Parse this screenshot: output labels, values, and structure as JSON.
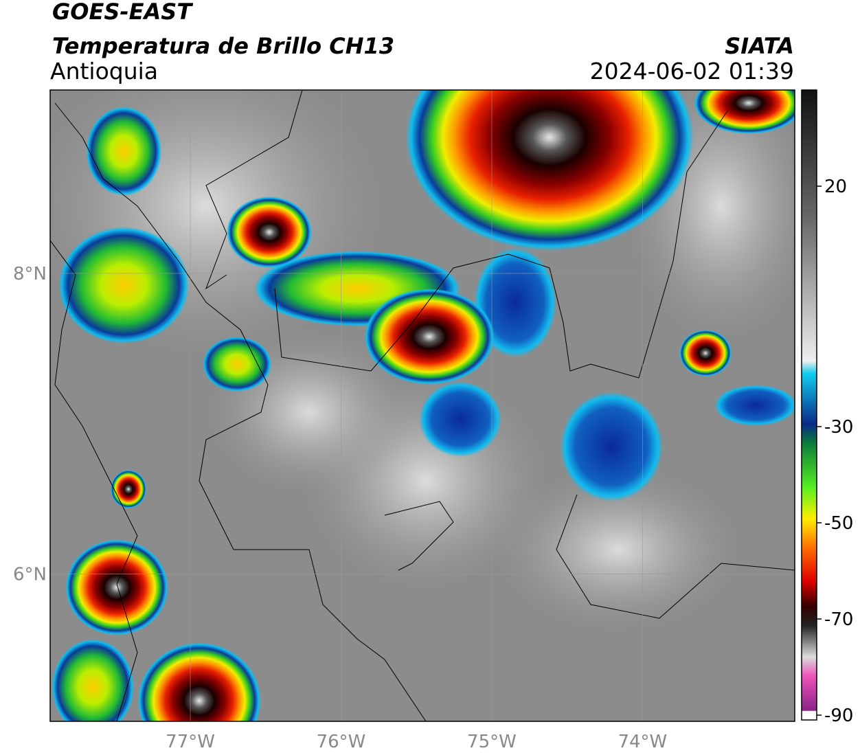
{
  "header": {
    "satellite": "GOES-EAST",
    "product": "Temperatura de Brillo CH13",
    "region": "Antioquia",
    "organization": "SIATA",
    "datetime": "2024-06-02 01:39"
  },
  "map": {
    "lonlim": [
      -77.93,
      -72.99
    ],
    "latlim": [
      5.02,
      9.22
    ],
    "lonticks": [
      {
        "value": -77,
        "label": "77°W"
      },
      {
        "value": -76,
        "label": "76°W"
      },
      {
        "value": -75,
        "label": "75°W"
      },
      {
        "value": -74,
        "label": "74°W"
      }
    ],
    "latticks": [
      {
        "value": 8,
        "label": "8°N"
      },
      {
        "value": 6,
        "label": "6°N"
      }
    ]
  },
  "colorbar": {
    "lim": [
      40,
      -91
    ],
    "ticks": [
      20,
      -30,
      -50,
      -70,
      -90
    ]
  }
}
